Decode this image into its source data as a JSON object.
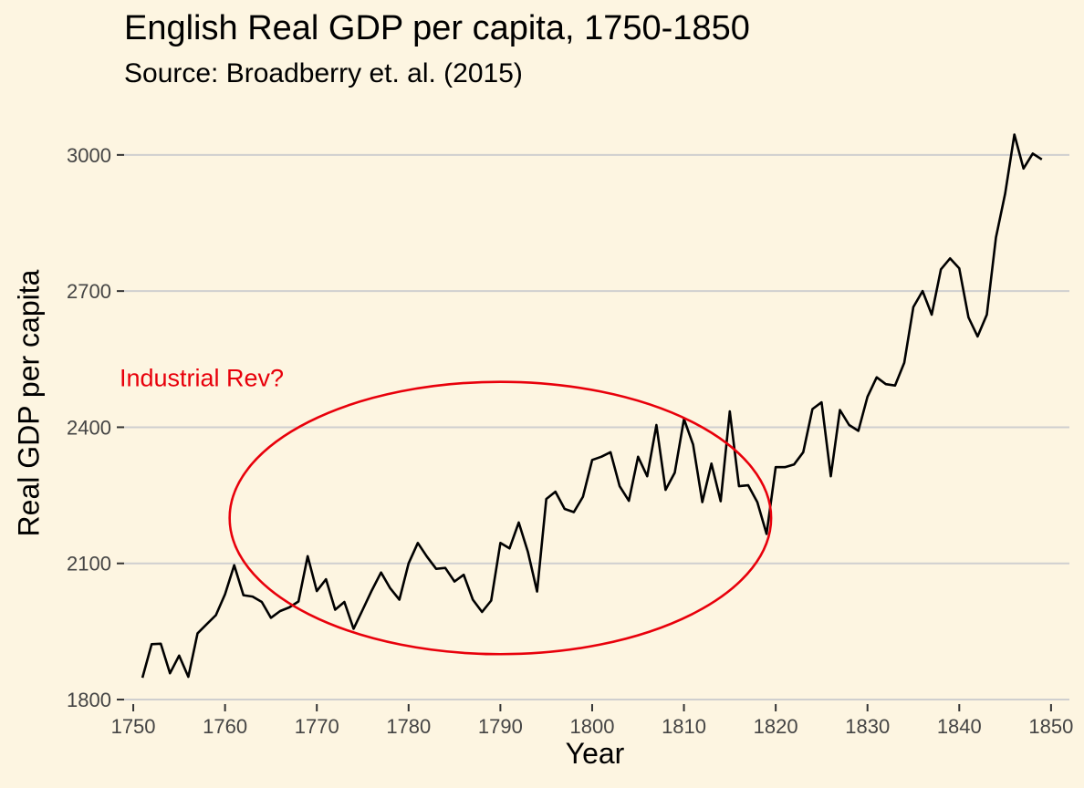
{
  "chart_data": {
    "type": "line",
    "title": "English Real GDP per capita, 1750-1850",
    "subtitle": "Source: Broadberry et. al. (2015)",
    "xlabel": "Year",
    "ylabel": "Real GDP per capita",
    "xlim": [
      1749,
      1852
    ],
    "ylim": [
      1790,
      3060
    ],
    "x_ticks": [
      1750,
      1760,
      1770,
      1780,
      1790,
      1800,
      1810,
      1820,
      1830,
      1840,
      1850
    ],
    "y_ticks": [
      1800,
      2100,
      2400,
      2700,
      3000
    ],
    "grid": "horizontal-major",
    "legend": "none",
    "line_color": "#000000",
    "series": [
      {
        "x": [
          1751,
          1752,
          1753,
          1754,
          1755,
          1756,
          1757,
          1758,
          1759,
          1760,
          1761,
          1762,
          1763,
          1764,
          1765,
          1766,
          1767,
          1768,
          1769,
          1770,
          1771,
          1772,
          1773,
          1774,
          1775,
          1776,
          1777,
          1778,
          1779,
          1780,
          1781,
          1782,
          1783,
          1784,
          1785,
          1786,
          1787,
          1788,
          1789,
          1790,
          1791,
          1792,
          1793,
          1794,
          1795,
          1796,
          1797,
          1798,
          1799,
          1800,
          1801,
          1802,
          1803,
          1804,
          1805,
          1806,
          1807,
          1808,
          1809,
          1810,
          1811,
          1812,
          1813,
          1814,
          1815,
          1816,
          1817,
          1818,
          1819,
          1820,
          1821,
          1822,
          1823,
          1824,
          1825,
          1826,
          1827,
          1828,
          1829,
          1830,
          1831,
          1832,
          1833,
          1834,
          1835,
          1836,
          1837,
          1838,
          1839,
          1840,
          1841,
          1842,
          1843,
          1844,
          1845,
          1846,
          1847,
          1848,
          1849
        ],
        "y": [
          1848,
          1922,
          1923,
          1858,
          1897,
          1850,
          1946,
          1966,
          1986,
          2032,
          2096,
          2030,
          2027,
          2015,
          1980,
          1995,
          2003,
          2016,
          2116,
          2039,
          2065,
          1998,
          2015,
          1956,
          1998,
          2041,
          2080,
          2045,
          2020,
          2100,
          2145,
          2115,
          2088,
          2090,
          2060,
          2075,
          2020,
          1993,
          2018,
          2145,
          2133,
          2190,
          2125,
          2038,
          2242,
          2258,
          2220,
          2213,
          2247,
          2328,
          2335,
          2345,
          2270,
          2238,
          2335,
          2292,
          2405,
          2262,
          2300,
          2418,
          2362,
          2235,
          2320,
          2237,
          2435,
          2270,
          2272,
          2235,
          2165,
          2312,
          2312,
          2318,
          2345,
          2440,
          2455,
          2292,
          2438,
          2405,
          2392,
          2467,
          2510,
          2495,
          2492,
          2542,
          2665,
          2700,
          2648,
          2748,
          2772,
          2750,
          2642,
          2600,
          2648,
          2818,
          2915,
          3045,
          2970,
          3003,
          2990
        ]
      }
    ],
    "annotations": [
      {
        "type": "ellipse",
        "center": [
          1790,
          2200
        ],
        "radius_x": 29.5,
        "radius_y": 300,
        "color": "#e8000b"
      },
      {
        "type": "text",
        "text": "Industrial Rev?",
        "x": 1748.5,
        "y": 2490,
        "color": "#e8000b"
      }
    ]
  }
}
